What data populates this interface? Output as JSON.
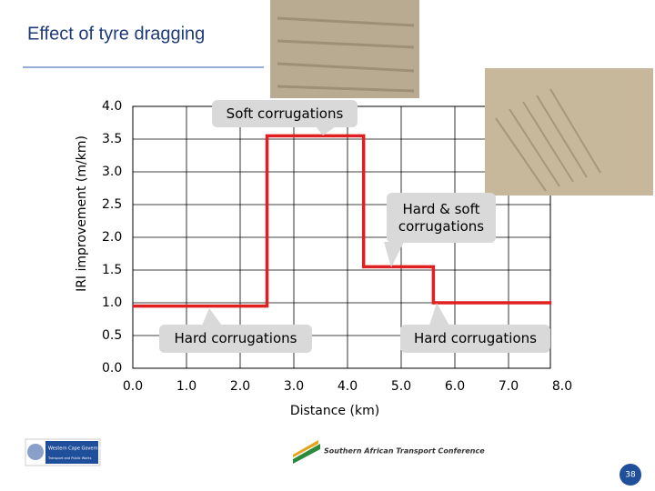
{
  "chart_data": {
    "type": "line",
    "title": "Effect of tyre dragging",
    "x_label": "Distance (km)",
    "y_label": "IRI improvement (m/km)",
    "series": [
      {
        "name": "IRI improvement",
        "color": "#e02020",
        "x": [
          0,
          2.5,
          2.5,
          4.3,
          4.3,
          5.6,
          5.6,
          7.8
        ],
        "values": [
          0.95,
          0.95,
          3.55,
          3.55,
          1.55,
          1.55,
          1.0,
          1.0
        ]
      }
    ],
    "xlim": [
      0,
      8
    ],
    "xticks": [
      {
        "value": 0,
        "label": "0.0"
      },
      {
        "value": 1,
        "label": "1.0"
      },
      {
        "value": 2,
        "label": "2.0"
      },
      {
        "value": 3,
        "label": "3.0"
      },
      {
        "value": 4,
        "label": "4.0"
      },
      {
        "value": 5,
        "label": "5.0"
      },
      {
        "value": 6,
        "label": "6.0"
      },
      {
        "value": 7,
        "label": "7.0"
      },
      {
        "value": 8,
        "label": "8.0"
      }
    ],
    "ylim": [
      0,
      4
    ],
    "yticks": [
      {
        "value": 0,
        "label": "0.0"
      },
      {
        "value": 0.5,
        "label": "0.5"
      },
      {
        "value": 1,
        "label": "1.0"
      },
      {
        "value": 1.5,
        "label": "1.5"
      },
      {
        "value": 2,
        "label": "2.0"
      },
      {
        "value": 2.5,
        "label": "2.5"
      },
      {
        "value": 3,
        "label": "3.0"
      },
      {
        "value": 3.5,
        "label": "3.5"
      },
      {
        "value": 4,
        "label": "4.0"
      }
    ],
    "grid": true,
    "annotations": [
      {
        "text": "Soft corrugations"
      },
      {
        "text": "Hard & soft corrugations"
      },
      {
        "text": "Hard corrugations"
      },
      {
        "text": "Hard corrugations"
      }
    ]
  },
  "footer": {
    "logo_left": "Western Cape Government",
    "logo_left_sub": "Transport and Public Works",
    "logo_center": "Southern African Transport Conference",
    "page_number": "38"
  }
}
